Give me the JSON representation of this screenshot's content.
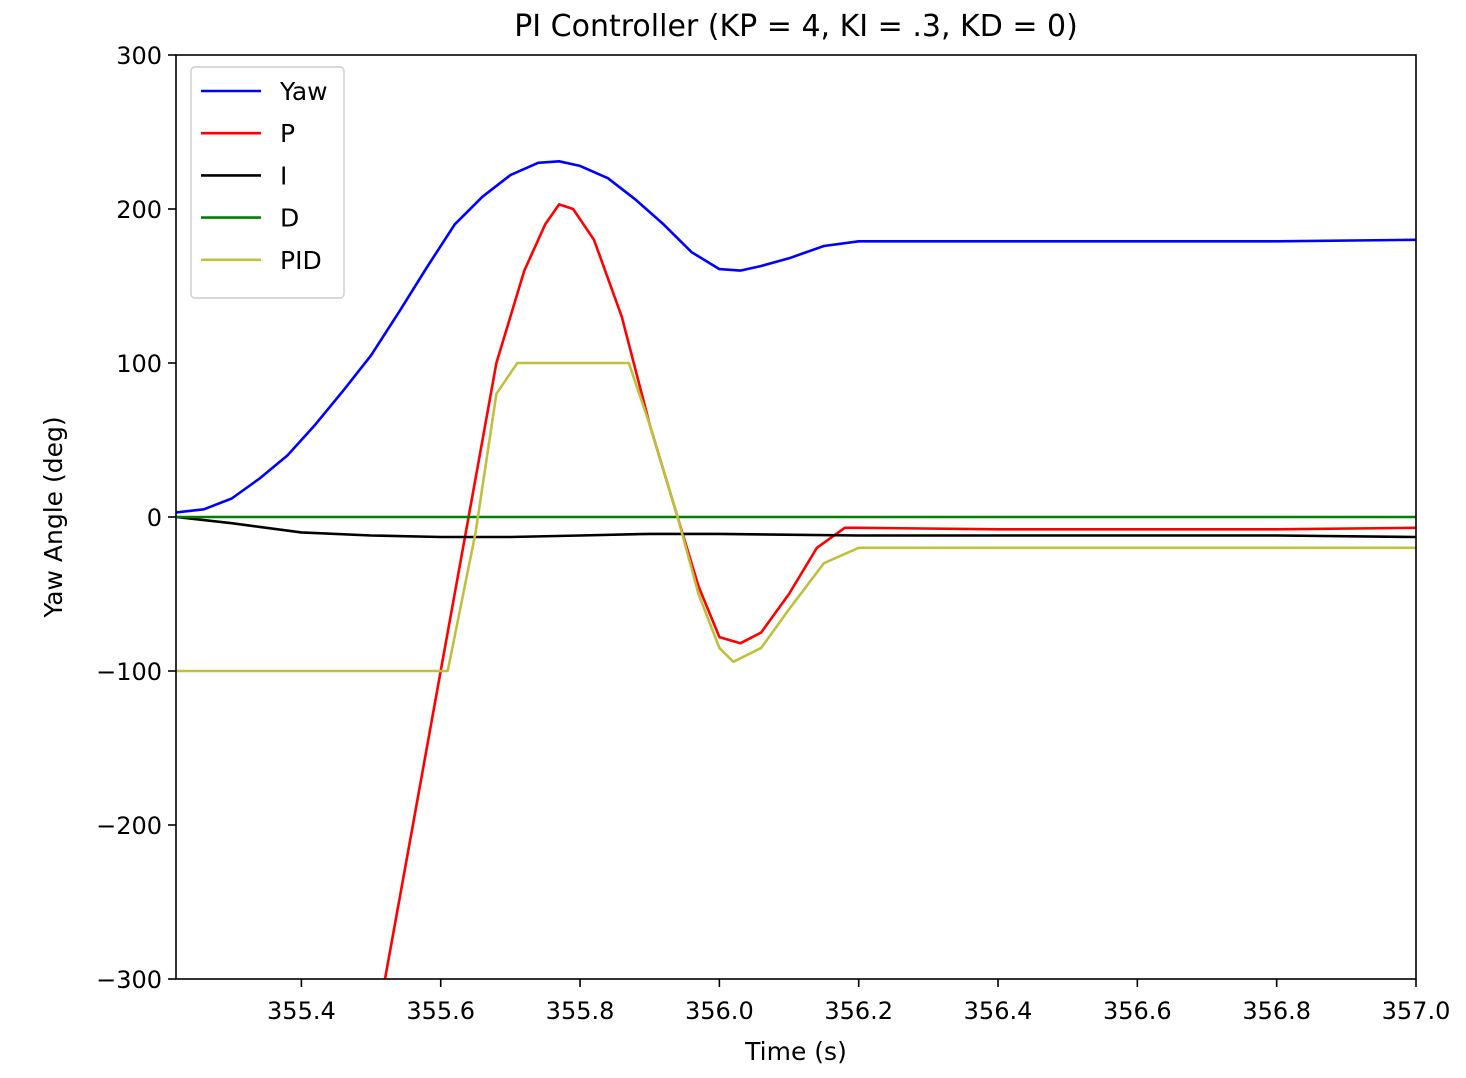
{
  "chart_data": {
    "type": "line",
    "title": "PI Controller (KP = 4, KI = .3, KD = 0)",
    "xlabel": "Time (s)",
    "ylabel": "Yaw Angle (deg)",
    "xlim": [
      355.22,
      357.0
    ],
    "ylim": [
      -300,
      300
    ],
    "x_ticks": [
      355.4,
      355.6,
      355.8,
      356.0,
      356.2,
      356.4,
      356.6,
      356.8,
      357.0
    ],
    "x_tick_labels": [
      "355.4",
      "355.6",
      "355.8",
      "356.0",
      "356.2",
      "356.4",
      "356.6",
      "356.8",
      "357.0"
    ],
    "y_ticks": [
      -300,
      -200,
      -100,
      0,
      100,
      200,
      300
    ],
    "y_tick_labels": [
      "−300",
      "−200",
      "−100",
      "0",
      "100",
      "200",
      "300"
    ],
    "grid": false,
    "legend_position": "top-left",
    "series": [
      {
        "name": "Yaw",
        "color": "#0000ff",
        "x": [
          355.22,
          355.26,
          355.3,
          355.34,
          355.38,
          355.42,
          355.46,
          355.5,
          355.54,
          355.58,
          355.62,
          355.66,
          355.7,
          355.74,
          355.77,
          355.8,
          355.84,
          355.88,
          355.92,
          355.96,
          356.0,
          356.03,
          356.06,
          356.1,
          356.15,
          356.2,
          356.4,
          356.6,
          356.8,
          357.0
        ],
        "values": [
          3,
          5,
          12,
          25,
          40,
          60,
          82,
          105,
          133,
          162,
          190,
          208,
          222,
          230,
          231,
          228,
          220,
          206,
          190,
          172,
          161,
          160,
          163,
          168,
          176,
          179,
          179,
          179,
          179,
          180
        ]
      },
      {
        "name": "P",
        "color": "#ff0000",
        "x": [
          355.52,
          355.56,
          355.6,
          355.64,
          355.68,
          355.72,
          355.75,
          355.77,
          355.79,
          355.82,
          355.86,
          355.9,
          355.94,
          355.97,
          356.0,
          356.03,
          356.06,
          356.1,
          356.14,
          356.18,
          356.2,
          356.4,
          356.6,
          356.8,
          357.0
        ],
        "values": [
          -300,
          -200,
          -100,
          0,
          100,
          160,
          190,
          203,
          200,
          180,
          130,
          60,
          0,
          -45,
          -78,
          -82,
          -75,
          -50,
          -20,
          -7,
          -7,
          -8,
          -8,
          -8,
          -7
        ]
      },
      {
        "name": "I",
        "color": "#000000",
        "x": [
          355.22,
          355.3,
          355.4,
          355.5,
          355.6,
          355.7,
          355.8,
          355.9,
          356.0,
          356.2,
          356.4,
          356.6,
          356.8,
          357.0
        ],
        "values": [
          0,
          -4,
          -10,
          -12,
          -13,
          -13,
          -12,
          -11,
          -11,
          -12,
          -12,
          -12,
          -12,
          -13
        ]
      },
      {
        "name": "D",
        "color": "#008000",
        "x": [
          355.22,
          357.0
        ],
        "values": [
          0,
          0
        ]
      },
      {
        "name": "PID",
        "color": "#bfbf40",
        "x": [
          355.22,
          355.61,
          355.65,
          355.68,
          355.71,
          355.77,
          355.87,
          355.9,
          355.94,
          355.97,
          356.0,
          356.02,
          356.06,
          356.1,
          356.15,
          356.2,
          356.4,
          356.6,
          356.8,
          357.0
        ],
        "values": [
          -100,
          -100,
          -10,
          80,
          100,
          100,
          100,
          60,
          0,
          -50,
          -85,
          -94,
          -85,
          -60,
          -30,
          -20,
          -20,
          -20,
          -20,
          -20
        ]
      }
    ]
  }
}
